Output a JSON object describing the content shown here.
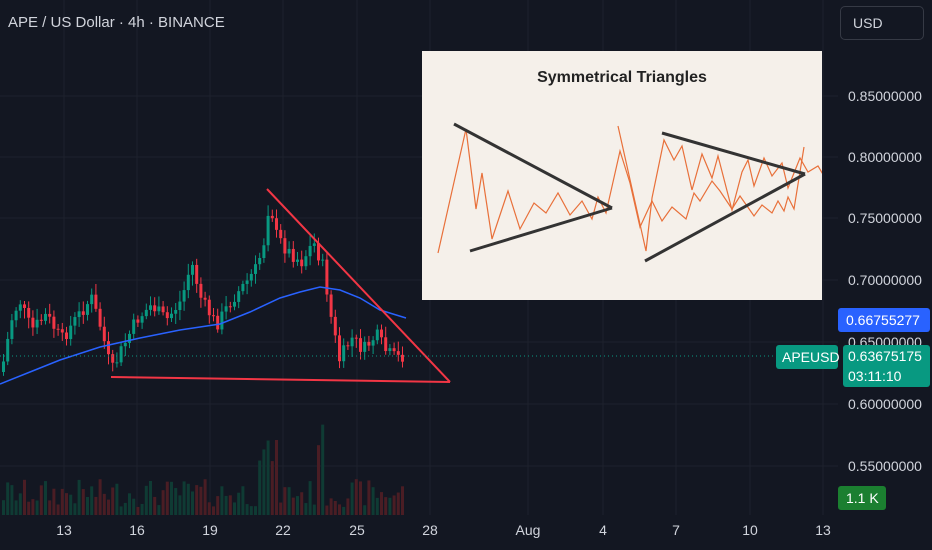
{
  "header": {
    "title": "APE / US Dollar · 4h · BINANCE"
  },
  "currency_button": {
    "label": "USD"
  },
  "price_axis": {
    "labels": [
      "0.85000000",
      "0.80000000",
      "0.75000000",
      "0.70000000",
      "0.65000000",
      "0.60000000",
      "0.55000000"
    ]
  },
  "time_axis": {
    "labels": [
      "13",
      "16",
      "19",
      "22",
      "25",
      "28",
      "Aug",
      "4",
      "7",
      "10",
      "13"
    ]
  },
  "tags": {
    "ma_value": "0.66755277",
    "symbol": "APEUSD",
    "last_price": "0.63675175",
    "countdown": "03:11:10",
    "volume": "1.1 K"
  },
  "inset": {
    "title": "Symmetrical Triangles"
  },
  "colors": {
    "background": "#131722",
    "up": "#089981",
    "down": "#f23645",
    "moving_average": "#2962ff",
    "trendline": "#f23645",
    "inset_zigzag": "#e8703a"
  },
  "chart_data": {
    "type": "candlestick",
    "symbol": "APEUSD",
    "interval": "4h",
    "exchange": "BINANCE",
    "y_axis_range": [
      0.535,
      0.885
    ],
    "grid": true,
    "last_price": 0.63675175,
    "moving_average_last": 0.66755277,
    "volume_last": "1.1 K",
    "trendlines": [
      {
        "kind": "descending_resistance",
        "from": [
          0.77,
          "Jul 21"
        ],
        "to": [
          0.618,
          "Jul 28"
        ]
      },
      {
        "kind": "support",
        "from": [
          0.627,
          "Jul 15"
        ],
        "to": [
          0.618,
          "Jul 28"
        ]
      }
    ]
  }
}
